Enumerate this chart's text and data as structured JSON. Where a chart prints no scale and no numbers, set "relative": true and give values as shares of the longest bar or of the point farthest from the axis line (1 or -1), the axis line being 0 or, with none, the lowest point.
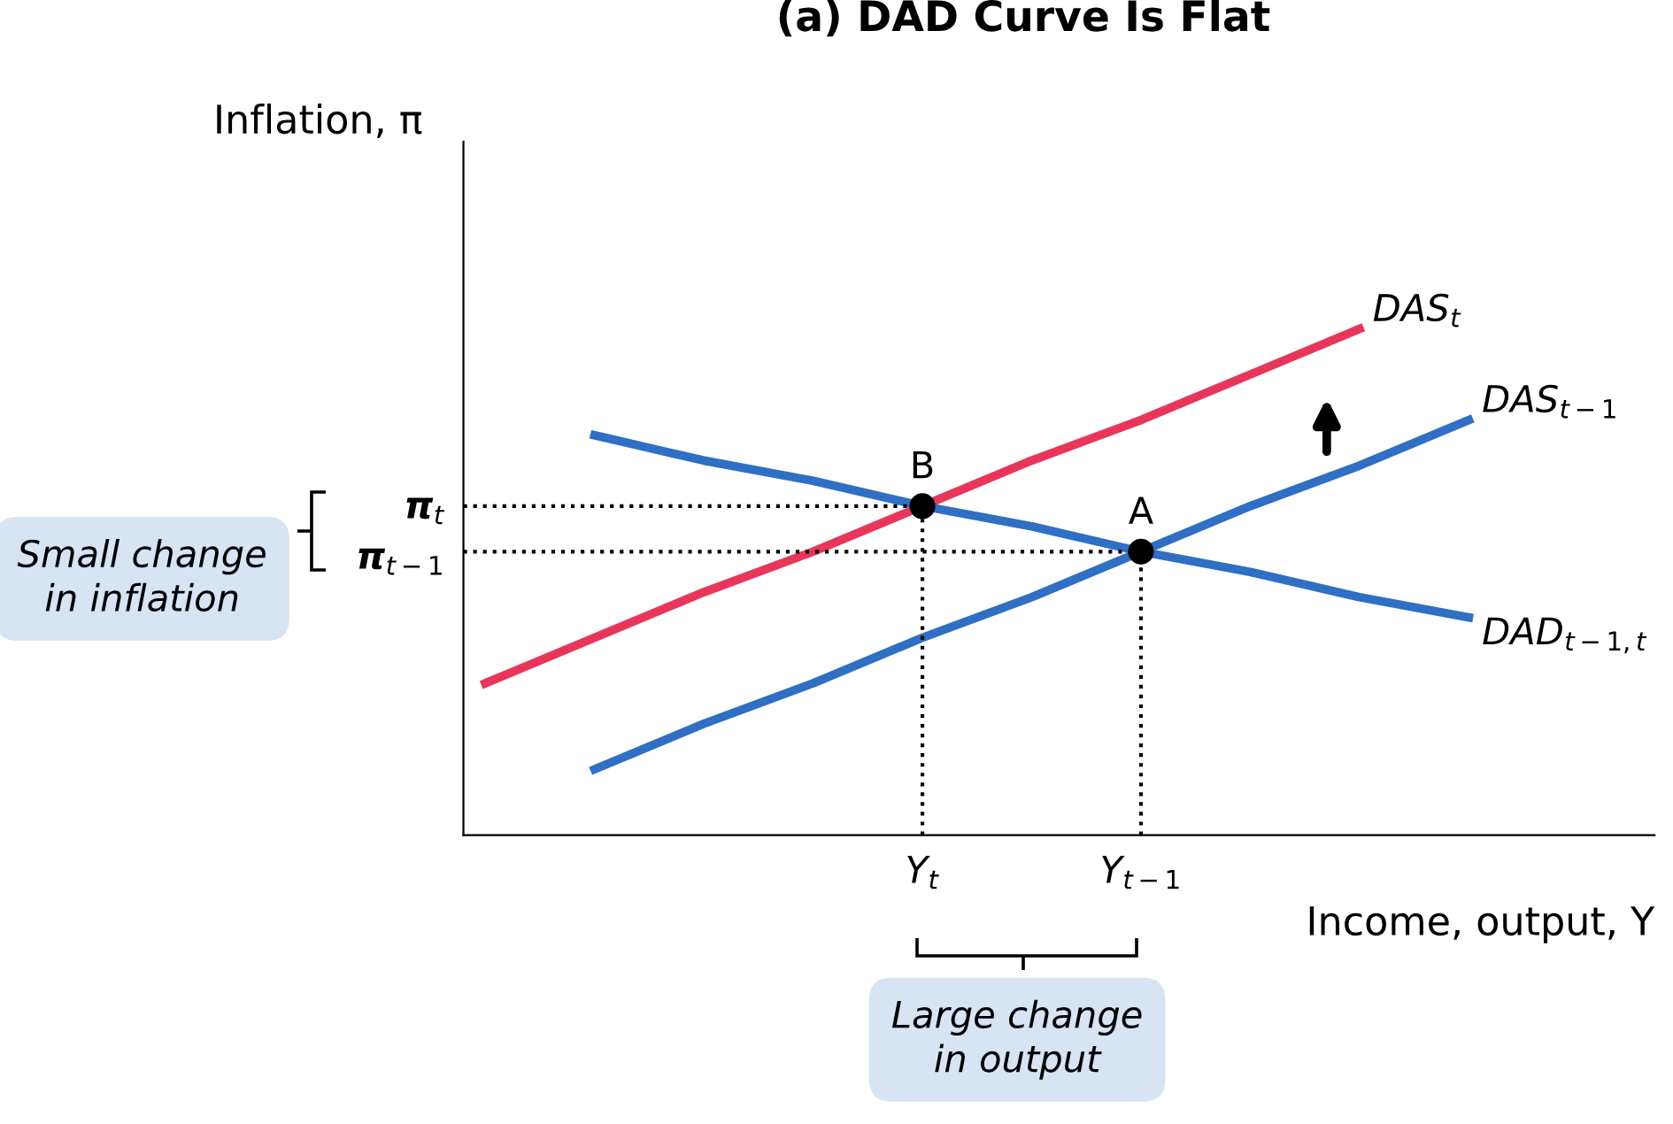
{
  "chart_data": {
    "type": "line",
    "title": "(a) DAD Curve Is Flat",
    "xlabel": "Income, output, Y",
    "ylabel": "Inflation, π",
    "relative": true,
    "categories": [
      null,
      null,
      null,
      null,
      "Y$_{t}$",
      null,
      "Y$_{t−1}$",
      null,
      null,
      null
    ],
    "grid": false,
    "legend": false,
    "marker": "none",
    "line_style": "solid",
    "series": [
      {
        "name": "DAS$_{t}$",
        "color": "#e8365a",
        "values": [
          0.3,
          0.39,
          0.48,
          0.56,
          0.65,
          0.74,
          0.82,
          0.91,
          1.0,
          null
        ]
      },
      {
        "name": "DAS$_{t−1}$",
        "color": "#2f6fc4",
        "values": [
          null,
          0.13,
          0.22,
          0.3,
          0.39,
          0.47,
          0.56,
          0.65,
          0.73,
          0.82
        ]
      },
      {
        "name": "DAD$_{t−1,t}$",
        "color": "#2f6fc4",
        "values": [
          null,
          0.79,
          0.74,
          0.7,
          0.65,
          0.61,
          0.56,
          0.52,
          0.47,
          0.43
        ]
      },
      {
        "name": "B",
        "type": "scatter",
        "marker": "circle",
        "color": "#000000",
        "values": [
          null,
          null,
          null,
          null,
          0.65,
          null,
          null,
          null,
          null,
          null
        ]
      },
      {
        "name": "A",
        "type": "scatter",
        "marker": "circle",
        "color": "#000000",
        "values": [
          null,
          null,
          null,
          null,
          null,
          null,
          0.56,
          null,
          null,
          null
        ]
      }
    ],
    "annotations": [
      "π$_{t}$",
      "π$_{t−1}$",
      "Small change\nin inflation",
      "Large change\nin output"
    ]
  }
}
